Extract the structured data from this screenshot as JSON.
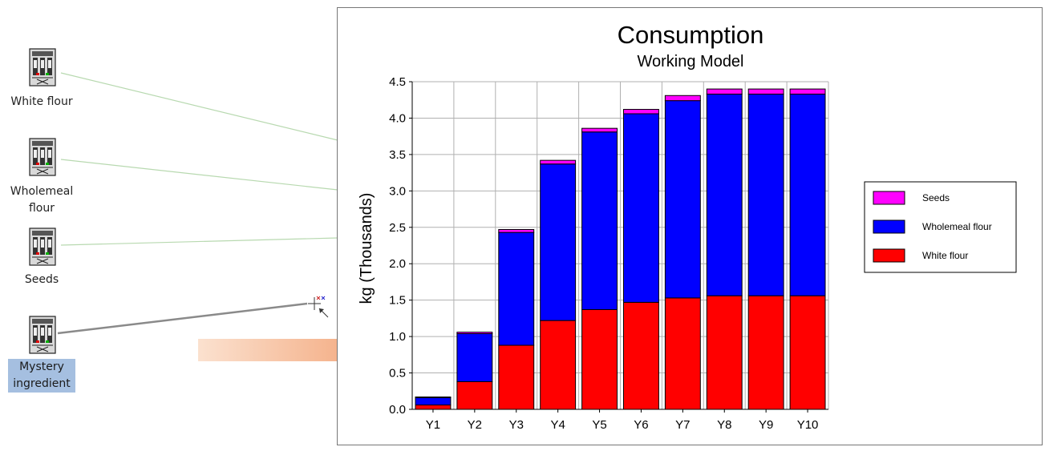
{
  "nodes": [
    {
      "label_lines": [
        "White flour"
      ],
      "selected": false
    },
    {
      "label_lines": [
        "Wholemeal",
        "flour"
      ],
      "selected": false
    },
    {
      "label_lines": [
        "Seeds"
      ],
      "selected": false
    },
    {
      "label_lines": [
        "Mystery",
        "ingredient"
      ],
      "selected": true
    }
  ],
  "colors": {
    "connector": "#b8d9b0",
    "connector_active": "#8a8a8a",
    "arrow_start": "#fbe1cf",
    "arrow_end": "#f3a67a",
    "selection": "#a5bfe0",
    "gridline": "#b0b0b0"
  },
  "cursor_icon": "link-crosshair-cursor-icon",
  "chart_data": {
    "type": "bar",
    "stacked": true,
    "title": "Consumption",
    "subtitle": "Working Model",
    "ylabel": "kg  (Thousands)",
    "xlabel": "",
    "ylim": [
      0,
      4.5
    ],
    "yticks": [
      "0.0",
      "0.5",
      "1.0",
      "1.5",
      "2.0",
      "2.5",
      "3.0",
      "3.5",
      "4.0",
      "4.5"
    ],
    "grid": true,
    "legend_position": "right",
    "categories": [
      "Y1",
      "Y2",
      "Y3",
      "Y4",
      "Y5",
      "Y6",
      "Y7",
      "Y8",
      "Y9",
      "Y10"
    ],
    "series": [
      {
        "name": "White flour",
        "color": "#ff0000",
        "values": [
          0.06,
          0.38,
          0.88,
          1.22,
          1.37,
          1.47,
          1.53,
          1.56,
          1.56,
          1.56
        ]
      },
      {
        "name": "Wholemeal flour",
        "color": "#0000ff",
        "values": [
          0.1,
          0.66,
          1.55,
          2.15,
          2.44,
          2.59,
          2.71,
          2.77,
          2.77,
          2.77
        ]
      },
      {
        "name": "Seeds",
        "color": "#ff00ff",
        "values": [
          0.01,
          0.02,
          0.04,
          0.05,
          0.05,
          0.06,
          0.07,
          0.07,
          0.07,
          0.07
        ]
      }
    ],
    "legend_order": [
      "Seeds",
      "Wholemeal flour",
      "White flour"
    ]
  }
}
